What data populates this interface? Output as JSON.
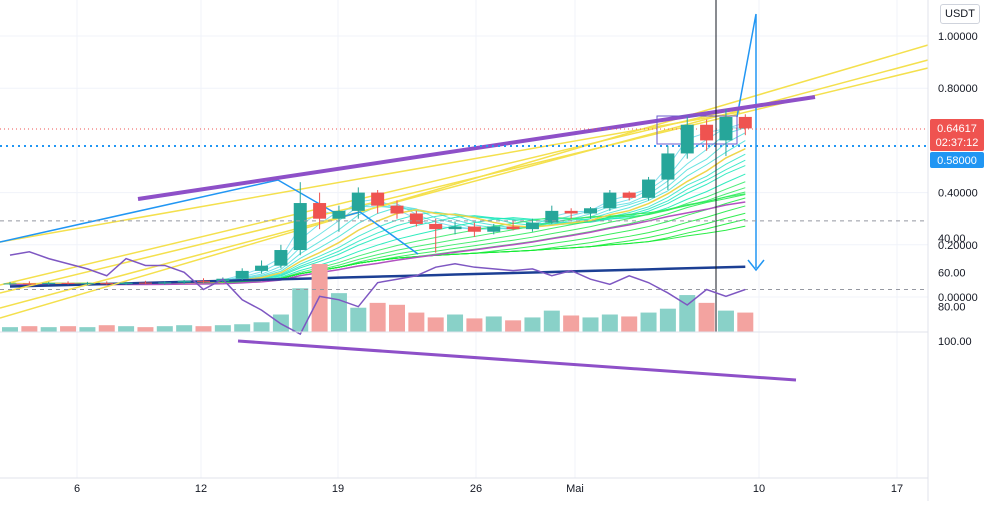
{
  "currency_button": "USDT",
  "price_tag": {
    "price": "0.64617",
    "countdown": "02:37:12",
    "color": "#ef5350"
  },
  "level_tag": {
    "price": "0.58000",
    "color": "#2196f3"
  },
  "chart_data": [
    {
      "type": "candlestick",
      "y_ticks": [
        "1.00000",
        "0.80000",
        "0.40000",
        "0.20000",
        "0.00000"
      ],
      "x_ticks": [
        "6",
        "12",
        "19",
        "26",
        "Mai",
        "10",
        "17"
      ],
      "ylim": [
        -0.05,
        1.1
      ],
      "candles": [
        {
          "o": 0.05,
          "h": 0.058,
          "l": 0.045,
          "c": 0.052
        },
        {
          "o": 0.052,
          "h": 0.06,
          "l": 0.046,
          "c": 0.05
        },
        {
          "o": 0.05,
          "h": 0.058,
          "l": 0.046,
          "c": 0.054
        },
        {
          "o": 0.054,
          "h": 0.06,
          "l": 0.048,
          "c": 0.051
        },
        {
          "o": 0.051,
          "h": 0.058,
          "l": 0.046,
          "c": 0.053
        },
        {
          "o": 0.053,
          "h": 0.06,
          "l": 0.047,
          "c": 0.05
        },
        {
          "o": 0.05,
          "h": 0.058,
          "l": 0.046,
          "c": 0.055
        },
        {
          "o": 0.055,
          "h": 0.062,
          "l": 0.049,
          "c": 0.052
        },
        {
          "o": 0.052,
          "h": 0.06,
          "l": 0.047,
          "c": 0.056
        },
        {
          "o": 0.056,
          "h": 0.065,
          "l": 0.05,
          "c": 0.062
        },
        {
          "o": 0.062,
          "h": 0.072,
          "l": 0.055,
          "c": 0.06
        },
        {
          "o": 0.06,
          "h": 0.075,
          "l": 0.056,
          "c": 0.07
        },
        {
          "o": 0.07,
          "h": 0.11,
          "l": 0.065,
          "c": 0.1
        },
        {
          "o": 0.1,
          "h": 0.14,
          "l": 0.09,
          "c": 0.12
        },
        {
          "o": 0.12,
          "h": 0.2,
          "l": 0.11,
          "c": 0.18
        },
        {
          "o": 0.18,
          "h": 0.44,
          "l": 0.16,
          "c": 0.36
        },
        {
          "o": 0.36,
          "h": 0.4,
          "l": 0.26,
          "c": 0.3
        },
        {
          "o": 0.3,
          "h": 0.35,
          "l": 0.25,
          "c": 0.33
        },
        {
          "o": 0.33,
          "h": 0.42,
          "l": 0.3,
          "c": 0.4
        },
        {
          "o": 0.4,
          "h": 0.41,
          "l": 0.32,
          "c": 0.35
        },
        {
          "o": 0.35,
          "h": 0.37,
          "l": 0.3,
          "c": 0.32
        },
        {
          "o": 0.32,
          "h": 0.33,
          "l": 0.27,
          "c": 0.28
        },
        {
          "o": 0.28,
          "h": 0.3,
          "l": 0.17,
          "c": 0.26
        },
        {
          "o": 0.26,
          "h": 0.29,
          "l": 0.24,
          "c": 0.27
        },
        {
          "o": 0.27,
          "h": 0.285,
          "l": 0.23,
          "c": 0.25
        },
        {
          "o": 0.25,
          "h": 0.28,
          "l": 0.24,
          "c": 0.27
        },
        {
          "o": 0.27,
          "h": 0.29,
          "l": 0.255,
          "c": 0.26
        },
        {
          "o": 0.26,
          "h": 0.3,
          "l": 0.25,
          "c": 0.285
        },
        {
          "o": 0.285,
          "h": 0.35,
          "l": 0.28,
          "c": 0.33
        },
        {
          "o": 0.33,
          "h": 0.34,
          "l": 0.3,
          "c": 0.32
        },
        {
          "o": 0.32,
          "h": 0.345,
          "l": 0.3,
          "c": 0.34
        },
        {
          "o": 0.34,
          "h": 0.41,
          "l": 0.33,
          "c": 0.4
        },
        {
          "o": 0.4,
          "h": 0.405,
          "l": 0.37,
          "c": 0.38
        },
        {
          "o": 0.38,
          "h": 0.46,
          "l": 0.37,
          "c": 0.45
        },
        {
          "o": 0.45,
          "h": 0.58,
          "l": 0.41,
          "c": 0.55
        },
        {
          "o": 0.55,
          "h": 0.69,
          "l": 0.53,
          "c": 0.66
        },
        {
          "o": 0.66,
          "h": 0.68,
          "l": 0.56,
          "c": 0.6
        },
        {
          "o": 0.6,
          "h": 0.72,
          "l": 0.54,
          "c": 0.69
        },
        {
          "o": 0.69,
          "h": 0.7,
          "l": 0.62,
          "c": 0.646
        }
      ],
      "volume_colors_up": "#89d1c8",
      "volume_colors_down": "#f3a3a0",
      "volumes": [
        5,
        6,
        5,
        6,
        5,
        7,
        6,
        5,
        6,
        7,
        6,
        7,
        8,
        10,
        18,
        45,
        70,
        40,
        25,
        30,
        28,
        20,
        15,
        18,
        14,
        16,
        12,
        15,
        22,
        17,
        15,
        18,
        16,
        20,
        24,
        38,
        30,
        22,
        20
      ],
      "moving_average_long": [
        0.04,
        0.042,
        0.044,
        0.046,
        0.048,
        0.05,
        0.052,
        0.054,
        0.056,
        0.058,
        0.06,
        0.062,
        0.064,
        0.066,
        0.068,
        0.07,
        0.072,
        0.074,
        0.076,
        0.078,
        0.08,
        0.082,
        0.084,
        0.086,
        0.088,
        0.09,
        0.092,
        0.094,
        0.096,
        0.098,
        0.1,
        0.102,
        0.104,
        0.106,
        0.108,
        0.11,
        0.112,
        0.114,
        0.116
      ]
    },
    {
      "type": "line",
      "indicator": "RSI",
      "y_ticks": [
        "100.00",
        "80.00",
        "60.00",
        "40.00"
      ],
      "ylim": [
        22,
        103
      ],
      "band": [
        30,
        70
      ],
      "values": [
        50,
        48,
        52,
        55,
        58,
        62,
        52,
        56,
        56,
        60,
        70,
        64,
        76,
        82,
        90,
        96,
        74,
        76,
        80,
        66,
        64,
        62,
        57,
        55,
        57,
        58,
        59,
        58,
        62,
        59,
        64,
        67,
        62,
        66,
        72,
        79,
        70,
        74,
        70
      ]
    }
  ]
}
